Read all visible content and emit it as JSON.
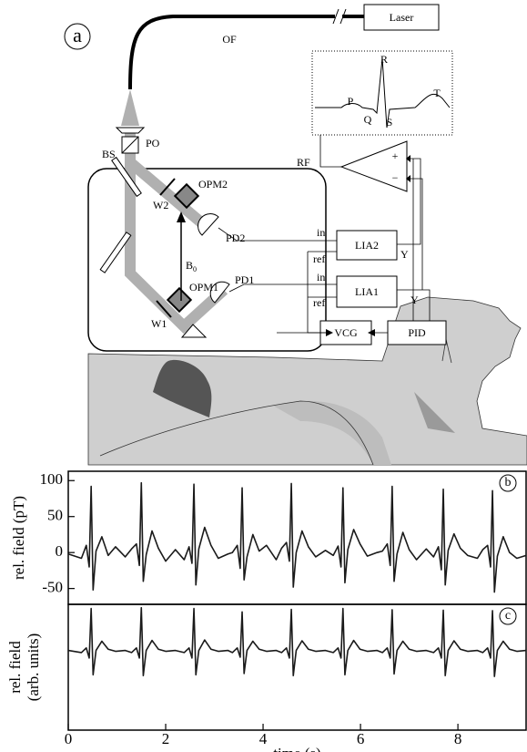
{
  "diagram": {
    "panel_label": "a",
    "fiber": "OF",
    "laser": "Laser",
    "ecg_r": "R",
    "ecg_p": "P",
    "ecg_t": "T",
    "ecg_q": "Q",
    "ecg_s": "S",
    "po": "PO",
    "bs": "BS",
    "rf": "RF",
    "opm2": "OPM2",
    "w2": "W2",
    "pd2": "PD2",
    "field": "B",
    "field_subscript": "0",
    "opm1": "OPM1",
    "pd1": "PD1",
    "w1": "W1",
    "in2": "in",
    "ref2": "ref",
    "in1": "in",
    "ref1": "ref",
    "lia2": "LIA2",
    "lia1": "LIA1",
    "y2": "Y",
    "y1": "Y",
    "vcg": "VCG",
    "pid": "PID",
    "plus": "+",
    "minus": "−"
  },
  "chart_data": [
    {
      "type": "line",
      "panel_label": "b",
      "ylabel": [
        "rel. field (pT)"
      ],
      "xlim": [
        0,
        9.4
      ],
      "ylim": [
        -72,
        113
      ],
      "yticks": [
        -50,
        0,
        50,
        100
      ],
      "x": [
        0,
        0.27,
        0.37,
        0.43,
        0.47,
        0.51,
        0.57,
        0.69,
        0.82,
        0.97,
        1.17,
        1.3,
        1.4,
        1.46,
        1.5,
        1.54,
        1.6,
        1.72,
        1.85,
        2.0,
        2.2,
        2.38,
        2.48,
        2.54,
        2.58,
        2.62,
        2.68,
        2.8,
        2.93,
        3.08,
        3.28,
        3.37,
        3.47,
        3.53,
        3.57,
        3.61,
        3.67,
        3.79,
        3.92,
        4.07,
        4.27,
        4.38,
        4.48,
        4.54,
        4.58,
        4.62,
        4.68,
        4.8,
        4.93,
        5.08,
        5.28,
        5.44,
        5.54,
        5.6,
        5.64,
        5.68,
        5.74,
        5.86,
        5.99,
        6.14,
        6.34,
        6.45,
        6.55,
        6.61,
        6.65,
        6.69,
        6.75,
        6.87,
        7.0,
        7.15,
        7.35,
        7.5,
        7.6,
        7.66,
        7.7,
        7.74,
        7.8,
        7.92,
        8.05,
        8.2,
        8.4,
        8.51,
        8.61,
        8.67,
        8.71,
        8.75,
        8.81,
        8.93,
        9.06,
        9.21,
        9.4
      ],
      "series": [
        {
          "color": "#1a1a1a",
          "values": [
            -2,
            -8,
            10,
            -20,
            92,
            -52,
            2,
            22,
            -4,
            8,
            -6,
            5,
            12,
            -18,
            97,
            -40,
            -3,
            30,
            6,
            -12,
            4,
            -10,
            8,
            -15,
            95,
            -45,
            5,
            35,
            10,
            -8,
            -2,
            0,
            10,
            -22,
            90,
            -38,
            -6,
            25,
            2,
            10,
            -10,
            6,
            14,
            -12,
            96,
            -48,
            0,
            30,
            8,
            -6,
            3,
            -4,
            9,
            -20,
            90,
            -42,
            4,
            32,
            12,
            -5,
            0,
            2,
            12,
            -18,
            92,
            -40,
            -2,
            28,
            4,
            -10,
            5,
            -6,
            8,
            -24,
            88,
            -45,
            3,
            26,
            6,
            -4,
            -8,
            4,
            10,
            -20,
            86,
            -55,
            -5,
            22,
            0,
            -8,
            -4
          ]
        }
      ]
    },
    {
      "type": "line",
      "panel_label": "c",
      "ylabel": [
        "rel. field",
        "(arb. units)"
      ],
      "xlabel": "time (s)",
      "xlim": [
        0,
        9.4
      ],
      "ylim": [
        -1.9,
        1.1
      ],
      "xticks": [
        0,
        2,
        4,
        6,
        8
      ],
      "x": [
        0,
        0.27,
        0.37,
        0.43,
        0.47,
        0.51,
        0.57,
        0.69,
        0.82,
        0.97,
        1.17,
        1.3,
        1.4,
        1.46,
        1.5,
        1.54,
        1.6,
        1.72,
        1.85,
        2.0,
        2.2,
        2.38,
        2.48,
        2.54,
        2.58,
        2.62,
        2.68,
        2.8,
        2.93,
        3.08,
        3.28,
        3.37,
        3.47,
        3.53,
        3.57,
        3.61,
        3.67,
        3.79,
        3.92,
        4.07,
        4.27,
        4.38,
        4.48,
        4.54,
        4.58,
        4.62,
        4.68,
        4.8,
        4.93,
        5.08,
        5.28,
        5.44,
        5.54,
        5.6,
        5.64,
        5.68,
        5.74,
        5.86,
        5.99,
        6.14,
        6.34,
        6.45,
        6.55,
        6.61,
        6.65,
        6.69,
        6.75,
        6.87,
        7.0,
        7.15,
        7.35,
        7.5,
        7.6,
        7.66,
        7.7,
        7.74,
        7.8,
        7.92,
        8.05,
        8.2,
        8.4,
        8.51,
        8.61,
        8.67,
        8.71,
        8.75,
        8.81,
        8.93,
        9.06,
        9.21,
        9.4
      ],
      "series": [
        {
          "color": "#1a1a1a",
          "values": [
            0,
            -0.05,
            0.06,
            -0.18,
            1.0,
            -0.58,
            0,
            0.22,
            0.03,
            -0.02,
            0,
            -0.05,
            0.06,
            -0.18,
            1.02,
            -0.6,
            0,
            0.24,
            0.03,
            -0.02,
            0,
            -0.05,
            0.06,
            -0.18,
            1.0,
            -0.58,
            0,
            0.25,
            0.03,
            -0.02,
            0,
            -0.05,
            0.06,
            -0.16,
            0.92,
            -0.55,
            0,
            0.22,
            0.03,
            -0.02,
            0,
            -0.05,
            0.06,
            -0.18,
            0.98,
            -0.6,
            0,
            0.23,
            0.03,
            -0.02,
            0,
            -0.05,
            0.06,
            -0.18,
            1.0,
            -0.58,
            0,
            0.24,
            0.03,
            -0.02,
            0,
            -0.05,
            0.06,
            -0.18,
            0.97,
            -0.56,
            0,
            0.22,
            0.03,
            -0.02,
            0,
            -0.05,
            0.06,
            -0.18,
            0.96,
            -0.6,
            0,
            0.23,
            0.03,
            -0.02,
            0,
            -0.05,
            0.06,
            -0.18,
            0.95,
            -0.62,
            0,
            0.22,
            0.03,
            -0.02,
            0
          ]
        }
      ]
    }
  ]
}
